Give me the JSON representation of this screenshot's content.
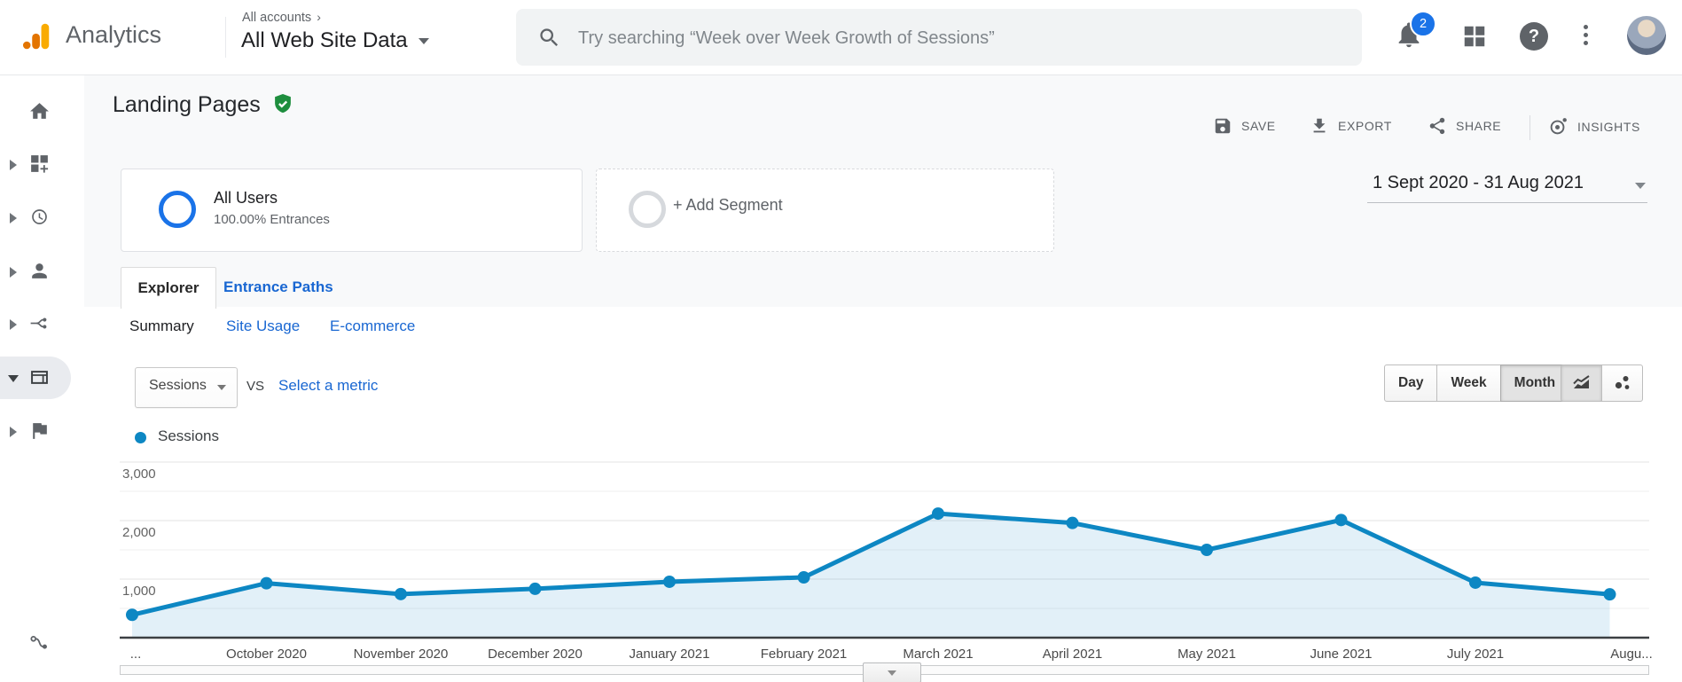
{
  "header": {
    "app_name": "Analytics",
    "breadcrumb": "All accounts",
    "breadcrumb_arrow": "›",
    "account_name": "All Web Site Data",
    "search_placeholder": "Try searching “Week over Week Growth of Sessions”",
    "notification_count": "2"
  },
  "sidebar": {
    "items": [
      {
        "id": "home",
        "icon": "home-icon",
        "expandable": false,
        "selected": false
      },
      {
        "id": "customization",
        "icon": "customization-icon",
        "expandable": true,
        "selected": false
      },
      {
        "id": "realtime",
        "icon": "realtime-icon",
        "expandable": true,
        "selected": false
      },
      {
        "id": "audience",
        "icon": "audience-icon",
        "expandable": true,
        "selected": false
      },
      {
        "id": "acquisition",
        "icon": "acquisition-icon",
        "expandable": true,
        "selected": false
      },
      {
        "id": "behavior",
        "icon": "behavior-icon",
        "expandable": true,
        "expanded": true,
        "selected": true
      },
      {
        "id": "conversions",
        "icon": "conversions-icon",
        "expandable": true,
        "selected": false
      }
    ],
    "footer_icon": "attribution-icon"
  },
  "report": {
    "title": "Landing Pages",
    "verified_badge_color": "#1e8e3e",
    "actions": {
      "save": "SAVE",
      "export": "EXPORT",
      "share": "SHARE",
      "insights": "INSIGHTS"
    },
    "segments": {
      "primary_name": "All Users",
      "primary_detail": "100.00% Entrances",
      "add_label": "+ Add Segment"
    },
    "date_range": "1 Sept 2020 - 31 Aug 2021",
    "tabs": [
      {
        "label": "Explorer",
        "active": true
      },
      {
        "label": "Entrance Paths",
        "active": false
      }
    ],
    "subtabs": [
      {
        "label": "Summary",
        "active": true
      },
      {
        "label": "Site Usage",
        "active": false
      },
      {
        "label": "E-commerce",
        "active": false
      }
    ],
    "metric": {
      "selected": "Sessions",
      "vs_label": "VS",
      "compare_label": "Select a metric"
    },
    "granularity": {
      "options": [
        "Day",
        "Week",
        "Month"
      ],
      "selected": "Month"
    }
  },
  "chart_data": {
    "type": "line",
    "title": "Sessions over time",
    "legend": "Sessions",
    "x": [
      "September 2020",
      "October 2020",
      "November 2020",
      "December 2020",
      "January 2021",
      "February 2021",
      "March 2021",
      "April 2021",
      "May 2021",
      "June 2021",
      "July 2021",
      "August 2021"
    ],
    "x_tick_labels": [
      "...",
      "October 2020",
      "November 2020",
      "December 2020",
      "January 2021",
      "February 2021",
      "March 2021",
      "April 2021",
      "May 2021",
      "June 2021",
      "July 2021",
      "Augu..."
    ],
    "series": [
      {
        "name": "Sessions",
        "values": [
          390,
          930,
          745,
          835,
          955,
          1030,
          2120,
          1960,
          1500,
          2010,
          940,
          740
        ]
      }
    ],
    "ylim": [
      0,
      3000
    ],
    "yticks": [
      1000,
      2000,
      3000
    ],
    "ytick_labels": [
      "1,000",
      "2,000",
      "3,000"
    ],
    "gridline_step": 500,
    "grid": true,
    "legend_position": "top-left",
    "line_color": "#0d87c3",
    "area_fill": "rgba(13,135,195,0.12)"
  }
}
